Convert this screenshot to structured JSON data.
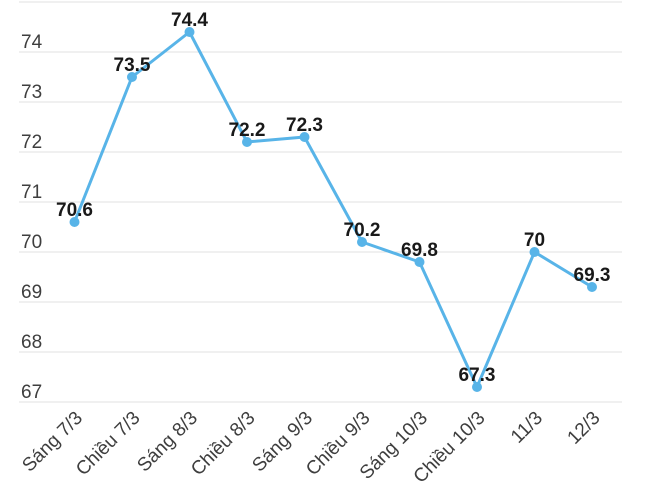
{
  "chart_data": {
    "type": "line",
    "categories": [
      "Sáng 7/3",
      "Chiều 7/3",
      "Sáng 8/3",
      "Chiều 8/3",
      "Sáng 9/3",
      "Chiều 9/3",
      "Sáng 10/3",
      "Chiều 10/3",
      "11/3",
      "12/3"
    ],
    "values": [
      70.6,
      73.5,
      74.4,
      72.2,
      72.3,
      70.2,
      69.8,
      67.3,
      70,
      69.3
    ],
    "yticks_labeled": [
      67,
      68,
      69,
      70,
      71,
      72,
      73,
      74
    ],
    "grid_values": [
      67,
      68,
      69,
      70,
      71,
      72,
      73,
      74,
      75
    ],
    "ylim": [
      67,
      75
    ],
    "grid": true,
    "legend": "none",
    "title": "",
    "xlabel": "",
    "ylabel": "",
    "x_labels_rotation_deg": -45,
    "data_labels_shown": true,
    "colors": {
      "line": "#58B4E8",
      "marker": "#58B4E8",
      "grid": "#E0E0E0",
      "axis_text": "#3E3E3E",
      "data_label_text": "#191919",
      "background": "#FFFFFF"
    }
  }
}
